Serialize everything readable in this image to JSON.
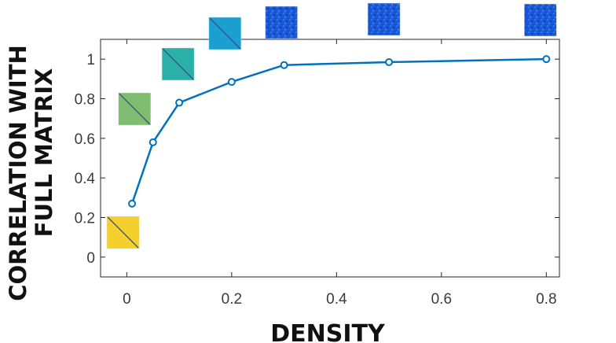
{
  "chart_data": {
    "type": "line",
    "title": "",
    "xlabel": "DENSITY",
    "ylabel_lines": [
      "CORRELATION WITH",
      "FULL MATRIX"
    ],
    "xlim": [
      -0.05,
      0.825
    ],
    "ylim": [
      -0.1,
      1.1
    ],
    "xticks": [
      0,
      0.2,
      0.4,
      0.6,
      0.8
    ],
    "xtick_labels": [
      "0",
      "0.2",
      "0.4",
      "0.6",
      "0.8"
    ],
    "yticks": [
      0,
      0.2,
      0.4,
      0.6,
      0.8,
      1
    ],
    "ytick_labels": [
      "0",
      "0.2",
      "0.4",
      "0.6",
      "0.8",
      "1"
    ],
    "grid": false,
    "series": [
      {
        "color": "#0072bd",
        "marker": "circle",
        "x": [
          0.01,
          0.05,
          0.1,
          0.2,
          0.3,
          0.5,
          0.8
        ],
        "y": [
          0.27,
          0.58,
          0.78,
          0.885,
          0.97,
          0.985,
          1.0
        ]
      }
    ],
    "matrix_thumbnails": [
      {
        "density": 0.01,
        "color": "#f5cf2b",
        "pattern": "diagonal"
      },
      {
        "density": 0.05,
        "color": "#7fbd70",
        "pattern": "diagonal"
      },
      {
        "density": 0.1,
        "color": "#2ab0a8",
        "pattern": "diagonal"
      },
      {
        "density": 0.2,
        "color": "#19a0d0",
        "pattern": "diagonal"
      },
      {
        "density": 0.3,
        "color": "#1a58d8",
        "pattern": "noise"
      },
      {
        "density": 0.5,
        "color": "#1a58d8",
        "pattern": "noise"
      },
      {
        "density": 0.8,
        "color": "#1a58d8",
        "pattern": "noise"
      }
    ]
  }
}
